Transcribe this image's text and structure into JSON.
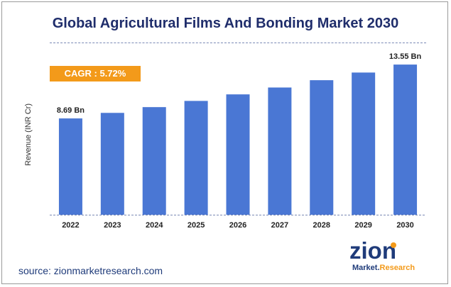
{
  "title": "Global Agricultural Films And Bonding Market 2030",
  "cagr_label": "CAGR : 5.72%",
  "source": "source: zionmarketresearch.com",
  "logo": {
    "word": "zion",
    "sub": "Market.Research"
  },
  "colors": {
    "bar": "#4a77d4",
    "cagr_bg": "#f39a1a",
    "title": "#1f2d6b",
    "axis": "#7a8ab5"
  },
  "chart_data": {
    "type": "bar",
    "title": "Global Agricultural Films And Bonding Market 2030",
    "xlabel": "",
    "ylabel": "Revenue (INR Cr)",
    "categories": [
      "2022",
      "2023",
      "2024",
      "2025",
      "2026",
      "2027",
      "2028",
      "2029",
      "2030"
    ],
    "values": [
      8.69,
      9.19,
      9.71,
      10.27,
      10.86,
      11.48,
      12.14,
      12.83,
      13.55
    ],
    "data_labels": [
      {
        "index": 0,
        "text": "8.69 Bn"
      },
      {
        "index": 8,
        "text": "13.55 Bn"
      }
    ],
    "ylim": [
      0,
      14.9
    ],
    "grid": false,
    "legend": "none"
  }
}
